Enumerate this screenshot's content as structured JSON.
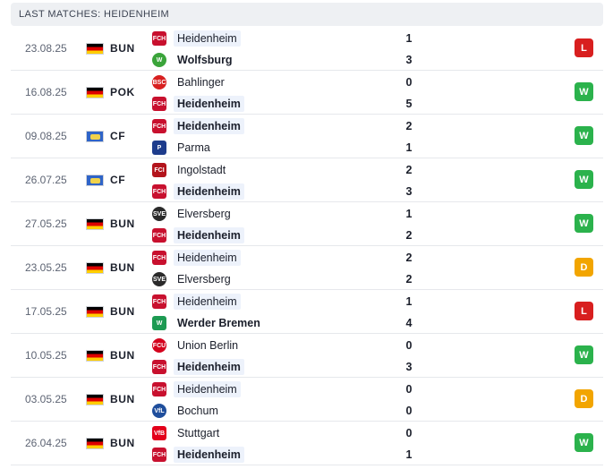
{
  "header": {
    "title": "LAST MATCHES: HEIDENHEIM"
  },
  "colors": {
    "win": "#2bb24c",
    "draw": "#f2a500",
    "loss": "#d81f1f",
    "highlight": "#edf2fb"
  },
  "matches": [
    {
      "date": "23.08.25",
      "flag": "germany-flag",
      "comp": "BUN",
      "home": {
        "name": "Heidenheim",
        "icon": "heidenheim-crest-icon",
        "score": "1",
        "highlight": true,
        "bold": false
      },
      "away": {
        "name": "Wolfsburg",
        "icon": "wolfsburg-crest-icon",
        "score": "3",
        "highlight": false,
        "bold": true
      },
      "result": "L"
    },
    {
      "date": "16.08.25",
      "flag": "germany-flag",
      "comp": "POK",
      "home": {
        "name": "Bahlinger",
        "icon": "bahlinger-crest-icon",
        "score": "0",
        "highlight": false,
        "bold": false
      },
      "away": {
        "name": "Heidenheim",
        "icon": "heidenheim-crest-icon",
        "score": "5",
        "highlight": true,
        "bold": true
      },
      "result": "W"
    },
    {
      "date": "09.08.25",
      "flag": "club-friendly-flag",
      "comp": "CF",
      "home": {
        "name": "Heidenheim",
        "icon": "heidenheim-crest-icon",
        "score": "2",
        "highlight": true,
        "bold": true
      },
      "away": {
        "name": "Parma",
        "icon": "parma-crest-icon",
        "score": "1",
        "highlight": false,
        "bold": false
      },
      "result": "W"
    },
    {
      "date": "26.07.25",
      "flag": "club-friendly-flag",
      "comp": "CF",
      "home": {
        "name": "Ingolstadt",
        "icon": "ingolstadt-crest-icon",
        "score": "2",
        "highlight": false,
        "bold": false
      },
      "away": {
        "name": "Heidenheim",
        "icon": "heidenheim-crest-icon",
        "score": "3",
        "highlight": true,
        "bold": true
      },
      "result": "W"
    },
    {
      "date": "27.05.25",
      "flag": "germany-flag",
      "comp": "BUN",
      "home": {
        "name": "Elversberg",
        "icon": "elversberg-crest-icon",
        "score": "1",
        "highlight": false,
        "bold": false
      },
      "away": {
        "name": "Heidenheim",
        "icon": "heidenheim-crest-icon",
        "score": "2",
        "highlight": true,
        "bold": true
      },
      "result": "W"
    },
    {
      "date": "23.05.25",
      "flag": "germany-flag",
      "comp": "BUN",
      "home": {
        "name": "Heidenheim",
        "icon": "heidenheim-crest-icon",
        "score": "2",
        "highlight": true,
        "bold": false
      },
      "away": {
        "name": "Elversberg",
        "icon": "elversberg-crest-icon",
        "score": "2",
        "highlight": false,
        "bold": false
      },
      "result": "D"
    },
    {
      "date": "17.05.25",
      "flag": "germany-flag",
      "comp": "BUN",
      "home": {
        "name": "Heidenheim",
        "icon": "heidenheim-crest-icon",
        "score": "1",
        "highlight": true,
        "bold": false
      },
      "away": {
        "name": "Werder Bremen",
        "icon": "werder-bremen-crest-icon",
        "score": "4",
        "highlight": false,
        "bold": true
      },
      "result": "L"
    },
    {
      "date": "10.05.25",
      "flag": "germany-flag",
      "comp": "BUN",
      "home": {
        "name": "Union Berlin",
        "icon": "union-berlin-crest-icon",
        "score": "0",
        "highlight": false,
        "bold": false
      },
      "away": {
        "name": "Heidenheim",
        "icon": "heidenheim-crest-icon",
        "score": "3",
        "highlight": true,
        "bold": true
      },
      "result": "W"
    },
    {
      "date": "03.05.25",
      "flag": "germany-flag",
      "comp": "BUN",
      "home": {
        "name": "Heidenheim",
        "icon": "heidenheim-crest-icon",
        "score": "0",
        "highlight": true,
        "bold": false
      },
      "away": {
        "name": "Bochum",
        "icon": "bochum-crest-icon",
        "score": "0",
        "highlight": false,
        "bold": false
      },
      "result": "D"
    },
    {
      "date": "26.04.25",
      "flag": "germany-flag",
      "comp": "BUN",
      "home": {
        "name": "Stuttgart",
        "icon": "stuttgart-crest-icon",
        "score": "0",
        "highlight": false,
        "bold": false
      },
      "away": {
        "name": "Heidenheim",
        "icon": "heidenheim-crest-icon",
        "score": "1",
        "highlight": true,
        "bold": true
      },
      "result": "W"
    }
  ]
}
